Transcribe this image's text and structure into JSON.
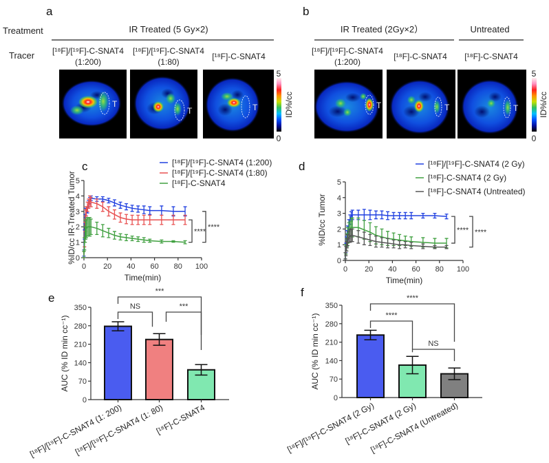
{
  "panel_labels": {
    "a": "a",
    "b": "b",
    "c": "c",
    "d": "d",
    "e": "e",
    "f": "f"
  },
  "panel_a": {
    "treatment_label": "Treatment",
    "tracer_label": "Tracer",
    "group_title": "IR Treated (5 Gy×2)",
    "tracers": [
      {
        "line1": "[¹⁸F]/[¹⁹F]-C-SNAT4",
        "line2": "(1:200)"
      },
      {
        "line1": "[¹⁸F]/[¹⁹F]-C-SNAT4",
        "line2": "(1:80)"
      },
      {
        "line1": "[¹⁸F]-C-SNAT4",
        "line2": ""
      }
    ],
    "roi_label": "T",
    "colorbar": {
      "max": "5",
      "min": "0",
      "label": "ID%/cc"
    }
  },
  "panel_b": {
    "groups": [
      {
        "title": "IR Treated (2Gy×2）"
      },
      {
        "title": "Untreated"
      }
    ],
    "tracers": [
      {
        "line1": "[¹⁸F]/[¹⁹F]-C-SNAT4",
        "line2": "(1:200)"
      },
      {
        "line1": "[¹⁸F]-C-SNAT4",
        "line2": ""
      },
      {
        "line1": "[¹⁸F]-C-SNAT4",
        "line2": ""
      }
    ],
    "roi_label": "T",
    "colorbar": {
      "max": "5",
      "min": "0",
      "label": "ID%/cc"
    }
  },
  "colormap": [
    "#000000",
    "#0010a0",
    "#0050ff",
    "#00c0ff",
    "#30c060",
    "#c8e000",
    "#ff9000",
    "#ff2020",
    "#ff90c0",
    "#fff0f0"
  ],
  "chart_data": [
    {
      "id": "c",
      "type": "line",
      "xlabel": "Time(min)",
      "ylabel": "%ID/cc IR-Treated Tumor",
      "xlim": [
        0,
        100
      ],
      "ylim": [
        0,
        5
      ],
      "xticks": [
        0,
        20,
        40,
        60,
        80,
        100
      ],
      "yticks": [
        0,
        1,
        2,
        3,
        4,
        5
      ],
      "legend": "top-right",
      "x": [
        0,
        0.5,
        1,
        1.5,
        2,
        3,
        4,
        5,
        6,
        11,
        16,
        21,
        26,
        31,
        36,
        41,
        46,
        51,
        56,
        66,
        76,
        86
      ],
      "series": [
        {
          "name": "[¹⁸F]/[¹⁹F]-C-SNAT4 (1:200)",
          "color": "#2040e0",
          "values": [
            0.3,
            1.5,
            2.5,
            2.9,
            2.9,
            3.1,
            3.5,
            3.7,
            3.85,
            3.8,
            3.8,
            3.7,
            3.55,
            3.4,
            3.3,
            3.2,
            3.15,
            3.1,
            3.05,
            3.05,
            3.0,
            3.0
          ],
          "errors": [
            0.2,
            0.3,
            0.3,
            0.3,
            0.2,
            0.2,
            0.2,
            0.2,
            0.15,
            0.15,
            0.15,
            0.15,
            0.2,
            0.2,
            0.2,
            0.2,
            0.2,
            0.25,
            0.25,
            0.3,
            0.3,
            0.3
          ]
        },
        {
          "name": "[¹⁸F]/[¹⁹F]-C-SNAT4 (1:80)",
          "color": "#e85050",
          "values": [
            0.2,
            1.0,
            2.0,
            2.8,
            3.0,
            3.3,
            3.5,
            3.7,
            3.6,
            3.5,
            3.3,
            3.0,
            2.8,
            2.6,
            2.5,
            2.45,
            2.45,
            2.45,
            2.45,
            2.45,
            2.45,
            2.45
          ],
          "errors": [
            0.2,
            0.3,
            0.3,
            0.3,
            0.3,
            0.3,
            0.3,
            0.3,
            0.3,
            0.3,
            0.3,
            0.3,
            0.3,
            0.3,
            0.3,
            0.3,
            0.3,
            0.3,
            0.3,
            0.3,
            0.3,
            0.3
          ]
        },
        {
          "name": "[¹⁸F]-C-SNAT4",
          "color": "#40a040",
          "values": [
            0.2,
            0.9,
            1.5,
            1.8,
            1.9,
            2.0,
            2.0,
            2.0,
            2.0,
            1.9,
            1.75,
            1.6,
            1.45,
            1.35,
            1.3,
            1.25,
            1.2,
            1.15,
            1.1,
            1.05,
            1.05,
            1.0
          ],
          "errors": [
            0.2,
            0.4,
            0.5,
            0.6,
            0.6,
            0.6,
            0.6,
            0.6,
            0.5,
            0.4,
            0.4,
            0.3,
            0.25,
            0.2,
            0.2,
            0.15,
            0.15,
            0.15,
            0.1,
            0.1,
            0.05,
            0.1
          ]
        }
      ],
      "annotations": [
        {
          "from": 1,
          "to": 2,
          "label": "****"
        },
        {
          "from": 0,
          "to": 2,
          "label": "****"
        }
      ]
    },
    {
      "id": "d",
      "type": "line",
      "xlabel": "Time(min)",
      "ylabel": "%ID/cc Tumor",
      "xlim": [
        0,
        100
      ],
      "ylim": [
        0,
        5
      ],
      "xticks": [
        0,
        20,
        40,
        60,
        80,
        100
      ],
      "yticks": [
        0,
        1,
        2,
        3,
        4,
        5
      ],
      "legend": "top-right",
      "x": [
        0,
        0.5,
        1,
        1.5,
        2,
        3,
        4,
        5,
        6,
        11,
        16,
        21,
        26,
        31,
        36,
        41,
        46,
        51,
        56,
        66,
        76,
        86
      ],
      "series": [
        {
          "name": "[¹⁸F]/[¹⁹F]-C-SNAT4 (2 Gy)",
          "color": "#2040e0",
          "values": [
            0.3,
            0.8,
            1.2,
            1.6,
            1.9,
            2.3,
            2.6,
            2.8,
            2.9,
            2.9,
            2.9,
            2.9,
            2.9,
            2.9,
            2.85,
            2.85,
            2.85,
            2.85,
            2.85,
            2.85,
            2.85,
            2.8
          ],
          "errors": [
            0.2,
            0.3,
            0.3,
            0.3,
            0.3,
            0.3,
            0.3,
            0.3,
            0.3,
            0.3,
            0.35,
            0.3,
            0.25,
            0.25,
            0.25,
            0.2,
            0.2,
            0.2,
            0.2,
            0.15,
            0.15,
            0.15
          ]
        },
        {
          "name": "[¹⁸F]-C-SNAT4 (2 Gy)",
          "color": "#40a040",
          "values": [
            0.3,
            0.7,
            1.0,
            1.3,
            1.6,
            1.9,
            2.0,
            2.1,
            2.1,
            2.1,
            1.95,
            1.8,
            1.6,
            1.5,
            1.4,
            1.35,
            1.3,
            1.25,
            1.2,
            1.15,
            1.1,
            1.1
          ],
          "errors": [
            0.2,
            0.3,
            0.4,
            0.4,
            0.5,
            0.5,
            0.5,
            0.6,
            0.6,
            0.6,
            0.6,
            0.6,
            0.55,
            0.5,
            0.45,
            0.4,
            0.35,
            0.3,
            0.3,
            0.3,
            0.3,
            0.3
          ]
        },
        {
          "name": "[¹⁸F]-C-SNAT4 (Untreated)",
          "color": "#555555",
          "values": [
            0.3,
            0.6,
            0.9,
            1.1,
            1.3,
            1.5,
            1.55,
            1.6,
            1.6,
            1.5,
            1.4,
            1.3,
            1.2,
            1.15,
            1.1,
            1.05,
            1.0,
            1.0,
            0.95,
            0.9,
            0.85,
            0.85
          ],
          "errors": [
            0.2,
            0.3,
            0.3,
            0.3,
            0.35,
            0.35,
            0.4,
            0.4,
            0.4,
            0.4,
            0.4,
            0.35,
            0.35,
            0.3,
            0.3,
            0.25,
            0.25,
            0.2,
            0.2,
            0.15,
            0.1,
            0.1
          ]
        }
      ],
      "annotations": [
        {
          "from": 0,
          "to": 1,
          "label": "****"
        },
        {
          "from": 0,
          "to": 2,
          "label": "****"
        }
      ]
    },
    {
      "id": "e",
      "type": "bar",
      "ylabel": "AUC (% ID min cc⁻¹)",
      "ylim": [
        0,
        350
      ],
      "yticks": [
        0,
        70,
        140,
        210,
        280,
        350
      ],
      "categories": [
        "[¹⁸F]/[¹⁹F]-C-SNAT4 (1: 200)",
        "[¹⁸F]/[¹⁹F]-C-SNAT4 (1: 80)",
        "[¹⁸F]-C-SNAT4"
      ],
      "values": [
        278,
        228,
        113
      ],
      "errors": [
        17,
        22,
        20
      ],
      "colors": [
        "#4a5cf0",
        "#f08080",
        "#80e8b0"
      ],
      "annotations": [
        {
          "from": 0,
          "to": 2,
          "label": "***",
          "level": 0
        },
        {
          "from": 0,
          "to": 1,
          "label": "NS",
          "level": 1
        },
        {
          "from": 1,
          "to": 2,
          "label": "***",
          "level": 1
        }
      ]
    },
    {
      "id": "f",
      "type": "bar",
      "ylabel": "AUC (% ID min cc⁻¹)",
      "ylim": [
        0,
        350
      ],
      "yticks": [
        0,
        70,
        140,
        210,
        280,
        350
      ],
      "categories": [
        "[¹⁸F]/[¹⁹F]-C-SNAT4 (2 Gy)",
        "[¹⁸F]-C-SNAT4 (2 Gy)",
        "[¹⁸F]-C-SNAT4 (Untreated)"
      ],
      "values": [
        237,
        123,
        90
      ],
      "errors": [
        18,
        33,
        22
      ],
      "colors": [
        "#4a5cf0",
        "#80e8b0",
        "#808080"
      ],
      "annotations": [
        {
          "from": 0,
          "to": 2,
          "label": "****",
          "level": 0
        },
        {
          "from": 0,
          "to": 1,
          "label": "****",
          "level": 1
        },
        {
          "from": 1,
          "to": 2,
          "label": "NS",
          "level": 2
        }
      ]
    }
  ]
}
